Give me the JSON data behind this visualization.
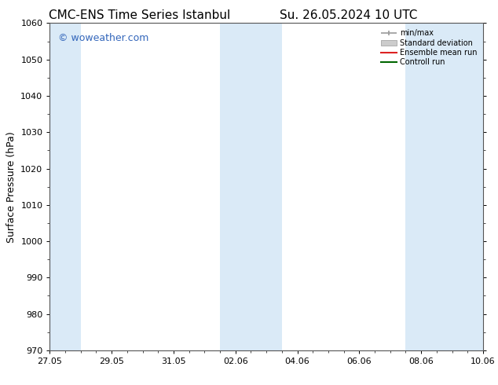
{
  "title": "CMC-ENS Time Series Istanbul",
  "title2": "Su. 26.05.2024 10 UTC",
  "ylabel": "Surface Pressure (hPa)",
  "ylim": [
    970,
    1060
  ],
  "yticks": [
    970,
    980,
    990,
    1000,
    1010,
    1020,
    1030,
    1040,
    1050,
    1060
  ],
  "xtick_labels": [
    "27.05",
    "29.05",
    "31.05",
    "02.06",
    "04.06",
    "06.06",
    "08.06",
    "10.06"
  ],
  "xtick_positions": [
    0,
    2,
    4,
    6,
    8,
    10,
    12,
    14
  ],
  "shade_color": "#daeaf7",
  "background_color": "#ffffff",
  "watermark_text": "© woweather.com",
  "watermark_color": "#3366bb",
  "legend_items": [
    {
      "label": "min/max",
      "color": "#999999"
    },
    {
      "label": "Standard deviation",
      "color": "#cccccc"
    },
    {
      "label": "Ensemble mean run",
      "color": "#dd2222"
    },
    {
      "label": "Controll run",
      "color": "#006600"
    }
  ],
  "title_fontsize": 11,
  "tick_fontsize": 8,
  "ylabel_fontsize": 9,
  "legend_fontsize": 7,
  "watermark_fontsize": 9,
  "spine_color": "#555555"
}
